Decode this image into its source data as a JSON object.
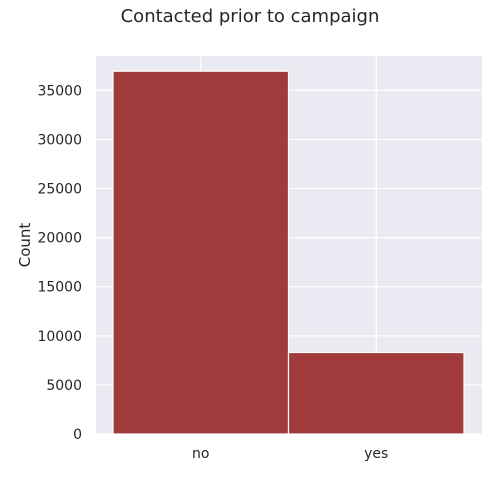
{
  "chart_data": {
    "type": "bar",
    "title": "Contacted prior to campaign",
    "xlabel": "",
    "ylabel": "Count",
    "categories": [
      "no",
      "yes"
    ],
    "values": [
      36950,
      8300
    ],
    "ylim": [
      0,
      38500
    ],
    "yticks": [
      0,
      5000,
      10000,
      15000,
      20000,
      25000,
      30000,
      35000
    ],
    "grid": true,
    "colors": {
      "bar": "#9B2D2D",
      "bar_edge": "#ffffff",
      "plot_background": "#EAEAF2",
      "grid": "#ffffff"
    }
  }
}
